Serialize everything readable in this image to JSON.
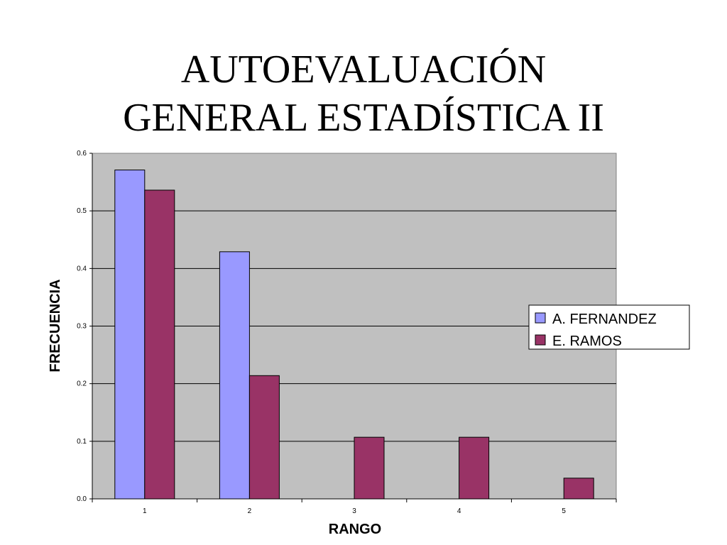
{
  "slide": {
    "title_line1": "AUTOEVALUACIÓN",
    "title_line2": "GENERAL ESTADÍSTICA II"
  },
  "chart_data": {
    "type": "bar",
    "title": "",
    "xlabel": "RANGO",
    "ylabel": "FRECUENCIA",
    "categories": [
      "1",
      "2",
      "3",
      "4",
      "5"
    ],
    "ylim": [
      0,
      0.6
    ],
    "yticks": [
      "0.0",
      "0.1",
      "0.2",
      "0.3",
      "0.4",
      "0.5",
      "0.6"
    ],
    "grid": true,
    "legend_position": "right",
    "plot_background": "#c0c0c0",
    "series": [
      {
        "name": "A. FERNANDEZ",
        "color": "#9999ff",
        "values": [
          0.571,
          0.429,
          0,
          0,
          0
        ]
      },
      {
        "name": "E. RAMOS",
        "color": "#993366",
        "values": [
          0.536,
          0.214,
          0.107,
          0.107,
          0.036
        ]
      }
    ]
  }
}
